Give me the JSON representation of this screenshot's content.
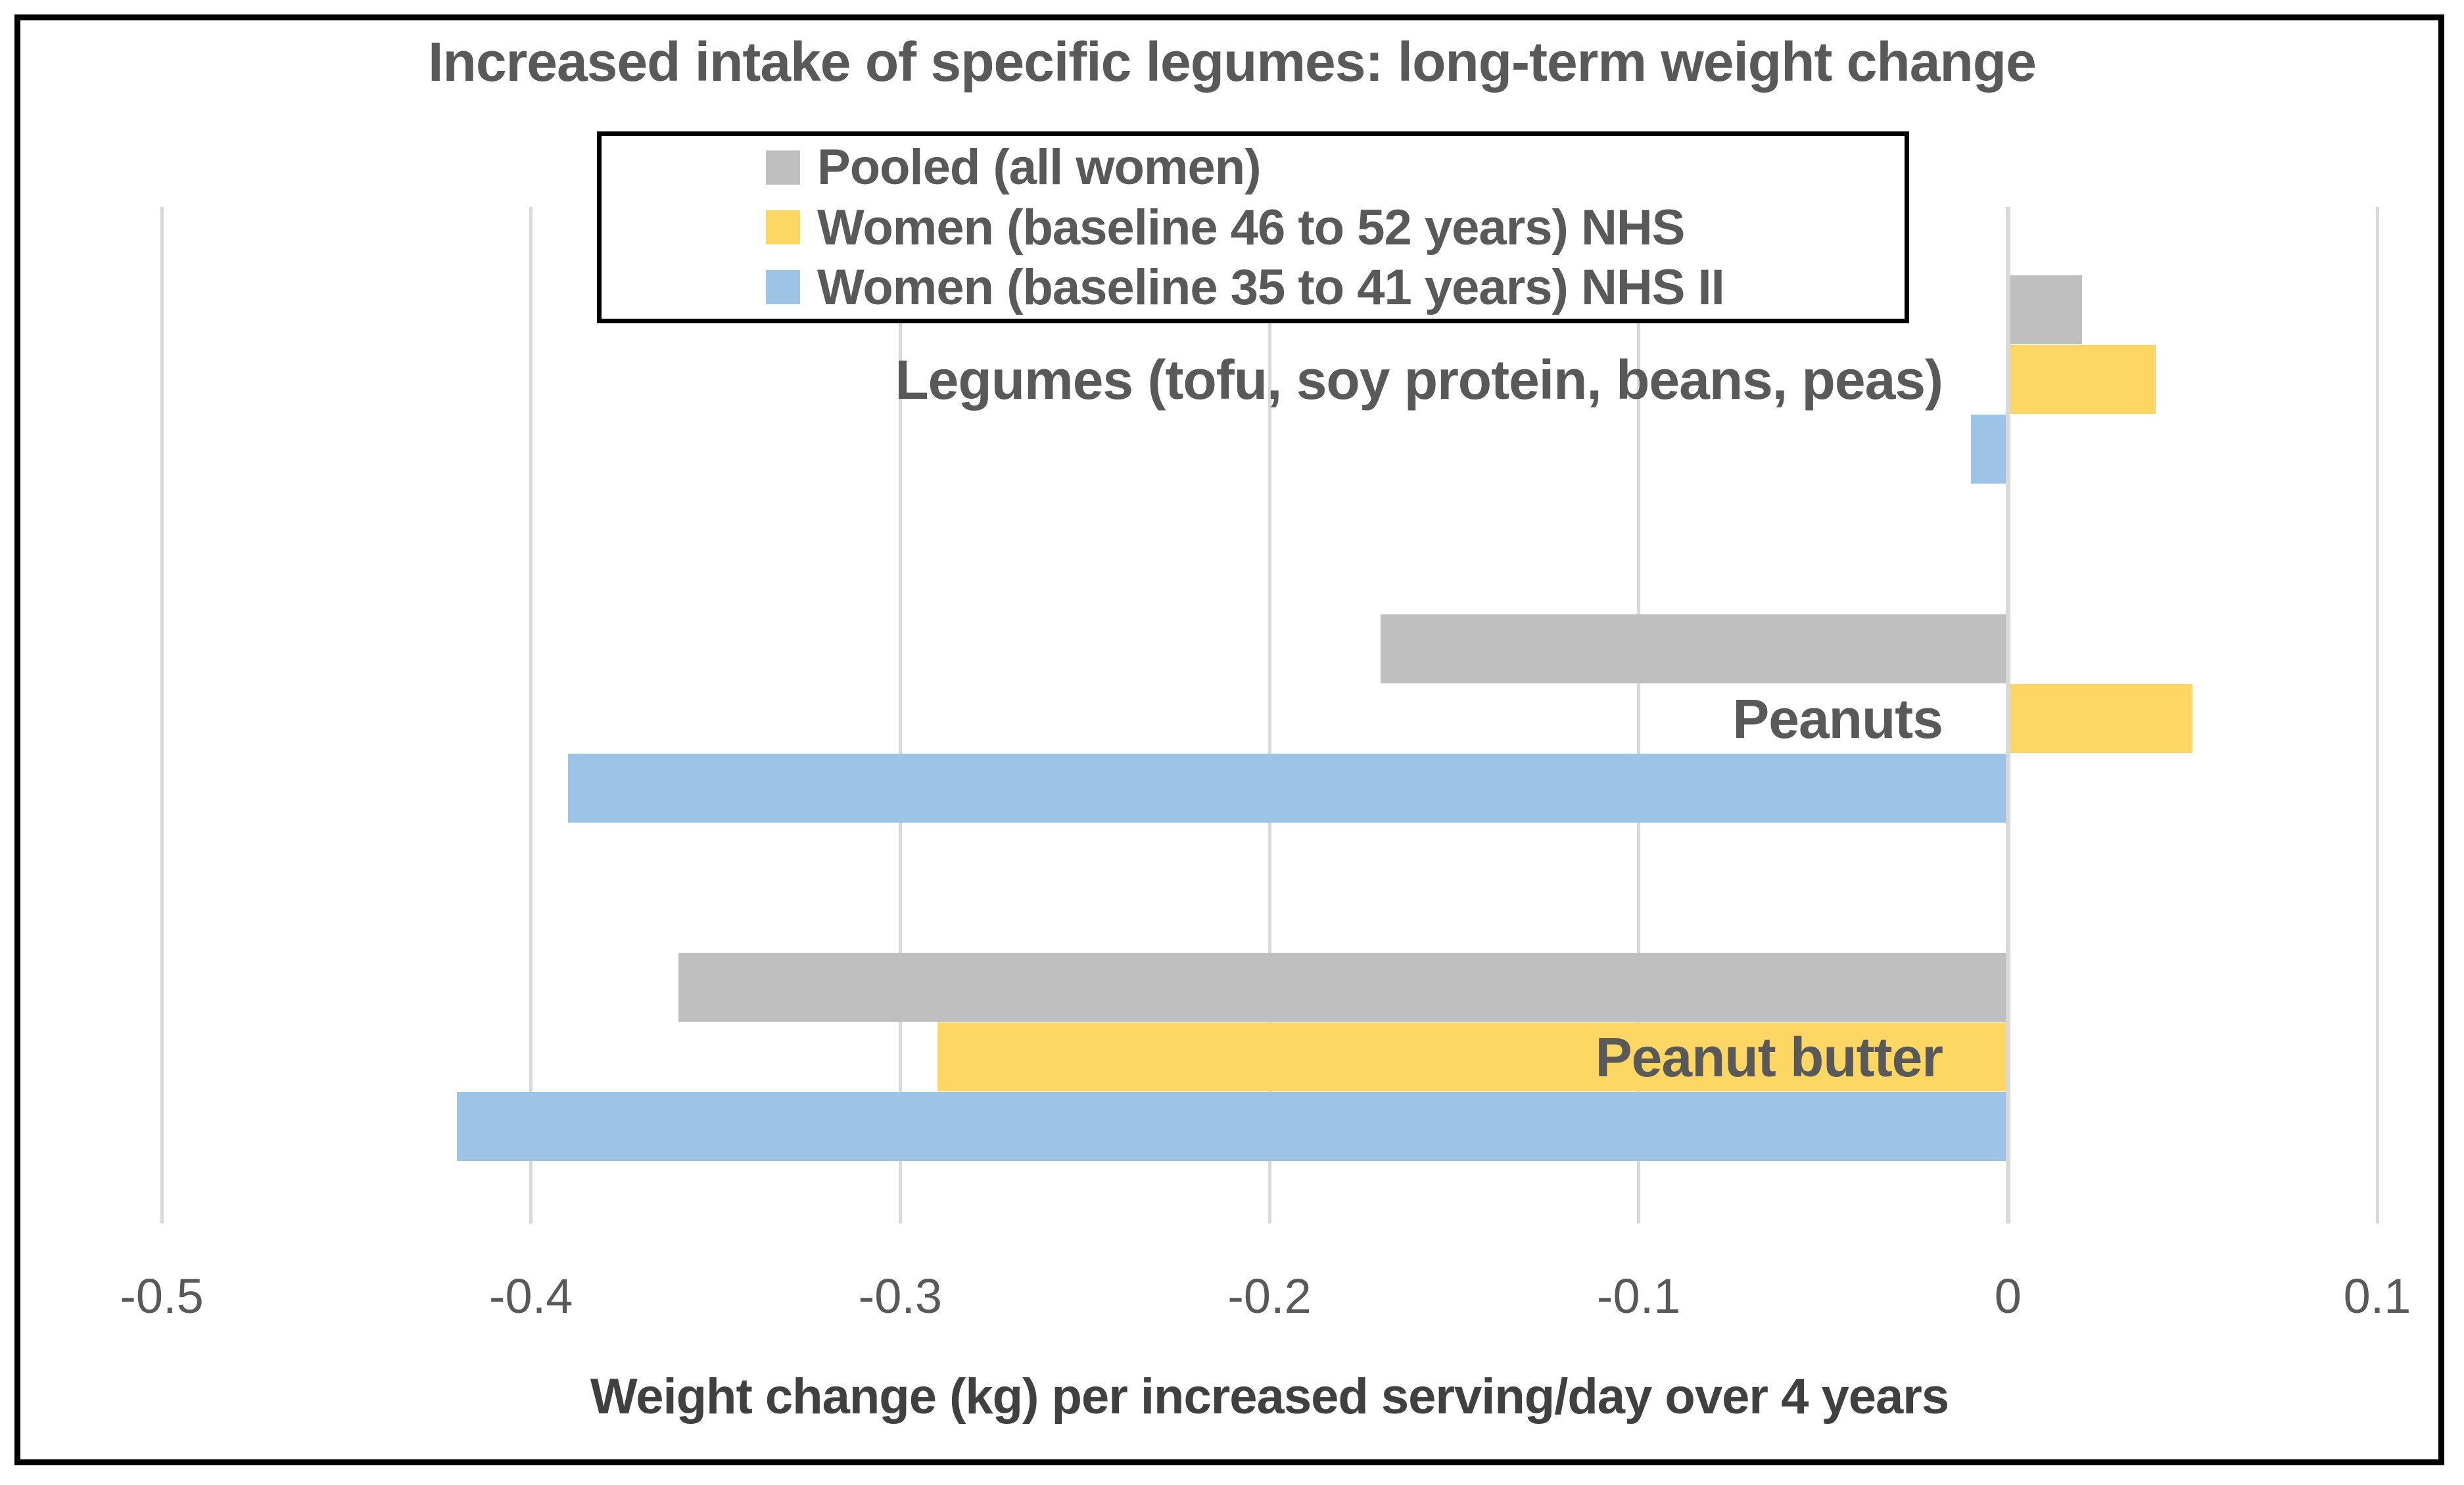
{
  "title": "Increased intake of specific legumes: long-term weight change",
  "colors": {
    "pooled": "#BFBFBF",
    "nhs": "#FDD663",
    "nhs2": "#9DC3E6",
    "title_text": "#595959",
    "category_text": "#595959",
    "legend_text": "#595959",
    "tick_text": "#595959",
    "axis_title_text": "#404040",
    "gridline": "#D9D9D9",
    "zero_line": "#D9D9D9",
    "border": "#000000",
    "background": "#FFFFFF"
  },
  "legend": {
    "items": [
      {
        "label": "Pooled (all women)",
        "series_key": "pooled"
      },
      {
        "label": "Women (baseline 46 to 52 years) NHS",
        "series_key": "nhs"
      },
      {
        "label": "Women (baseline 35 to 41 years) NHS II",
        "series_key": "nhs2"
      }
    ]
  },
  "chart_data": {
    "type": "bar",
    "orientation": "horizontal",
    "title": "Increased intake of specific legumes: long-term weight change",
    "categories": [
      "Legumes (tofu, soy protein, beans, peas)",
      "Peanuts",
      "Peanut butter"
    ],
    "series": [
      {
        "name": "Pooled (all women)",
        "color_key": "pooled",
        "values": [
          0.02,
          -0.17,
          -0.36
        ]
      },
      {
        "name": "Women (baseline 46 to 52 years) NHS",
        "color_key": "nhs",
        "values": [
          0.04,
          0.05,
          -0.29
        ]
      },
      {
        "name": "Women (baseline 35 to 41 years) NHS II",
        "color_key": "nhs2",
        "values": [
          -0.01,
          -0.39,
          -0.42
        ]
      }
    ],
    "xlabel": "Weight change (kg) per increased serving/day over 4 years",
    "xlim": [
      -0.5,
      0.1
    ],
    "xticks": [
      {
        "value": -0.5,
        "label": "-0.5"
      },
      {
        "value": -0.4,
        "label": "-0.4"
      },
      {
        "value": -0.3,
        "label": "-0.3"
      },
      {
        "value": -0.2,
        "label": "-0.2"
      },
      {
        "value": -0.1,
        "label": "-0.1"
      },
      {
        "value": 0,
        "label": "0"
      },
      {
        "value": 0.1,
        "label": "0.1"
      }
    ],
    "grid": true,
    "legend_position": "inside-top-center"
  }
}
